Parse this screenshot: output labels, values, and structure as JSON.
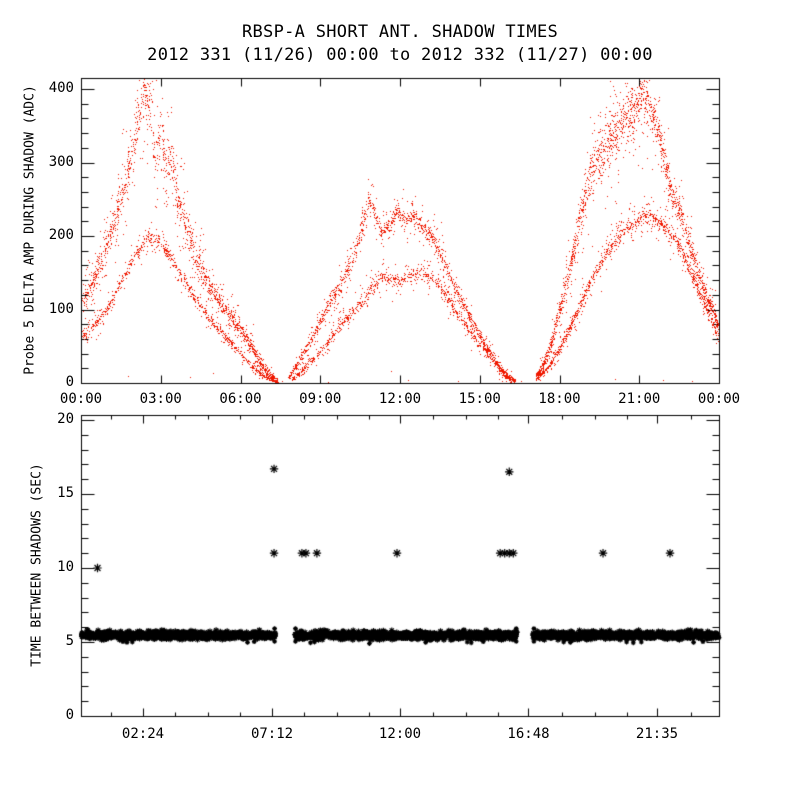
{
  "header": {
    "title": "RBSP-A SHORT ANT. SHADOW TIMES",
    "subtitle": "2012 331 (11/26) 00:00 to 2012 332 (11/27) 00:00"
  },
  "chart_data": [
    {
      "id": "probe5-delta-amp",
      "type": "scatter",
      "title": "RBSP-A SHORT ANT. SHADOW TIMES",
      "subtitle": "2012 331 (11/26) 00:00 to 2012 332 (11/27) 00:00",
      "xlabel": "",
      "ylabel": "Probe 5 DELTA AMP DURING SHADOW (ADC)",
      "xlim_hours": [
        0,
        24
      ],
      "ylim": [
        0,
        415
      ],
      "grid": false,
      "marker": "dot",
      "color": "#f01800",
      "x_ticks": {
        "hours": [
          0,
          3,
          6,
          9,
          12,
          15,
          18,
          21,
          24
        ],
        "labels": [
          "00:00",
          "03:00",
          "06:00",
          "09:00",
          "12:00",
          "15:00",
          "18:00",
          "21:00",
          "00:00"
        ]
      },
      "y_ticks": {
        "values": [
          0,
          100,
          200,
          300,
          400
        ],
        "labels": [
          "0",
          "100",
          "200",
          "300",
          "400"
        ],
        "minor_step": 20
      },
      "series": [
        {
          "name": "hump1-upper",
          "h": [
            0,
            0.4,
            0.8,
            1.2,
            1.6,
            2.0,
            2.2,
            2.4,
            2.6,
            2.8,
            3.0,
            3.2,
            3.4,
            3.6,
            4.0,
            4.4,
            4.8,
            5.2,
            5.6,
            6.0,
            6.4,
            6.8,
            7.1,
            7.4
          ],
          "v": [
            105,
            135,
            170,
            215,
            265,
            330,
            370,
            400,
            370,
            300,
            340,
            300,
            310,
            255,
            205,
            165,
            135,
            112,
            92,
            72,
            50,
            25,
            10,
            3
          ],
          "spread": [
            18,
            20,
            24,
            28,
            34,
            40,
            40,
            38,
            45,
            50,
            45,
            45,
            40,
            38,
            30,
            26,
            22,
            18,
            15,
            13,
            11,
            8,
            5,
            3
          ],
          "count": 1500
        },
        {
          "name": "hump1-lower",
          "h": [
            0,
            0.5,
            1,
            1.5,
            2,
            2.5,
            3,
            3.5,
            4,
            4.5,
            5,
            5.5,
            6,
            6.5,
            7,
            7.4
          ],
          "v": [
            60,
            80,
            103,
            138,
            172,
            200,
            190,
            163,
            132,
            103,
            80,
            60,
            40,
            20,
            7,
            1
          ],
          "spread": [
            8,
            9,
            10,
            11,
            12,
            13,
            12,
            11,
            10,
            9,
            8,
            7,
            6,
            5,
            3,
            1
          ],
          "count": 800
        },
        {
          "name": "hump2-upper",
          "h": [
            7.8,
            8.2,
            8.6,
            9.0,
            9.4,
            9.8,
            10.2,
            10.5,
            10.8,
            11.0,
            11.3,
            11.6,
            11.9,
            12.2,
            12.5,
            12.8,
            13.1,
            13.4,
            13.8,
            14.2,
            14.6,
            15.0,
            15.4,
            15.8,
            16.1,
            16.35
          ],
          "v": [
            8,
            30,
            55,
            85,
            112,
            138,
            165,
            205,
            245,
            235,
            205,
            215,
            235,
            222,
            228,
            215,
            205,
            185,
            150,
            120,
            92,
            65,
            40,
            18,
            8,
            3
          ],
          "spread": [
            4,
            8,
            10,
            12,
            14,
            15,
            16,
            18,
            16,
            15,
            14,
            14,
            13,
            14,
            13,
            13,
            14,
            14,
            13,
            12,
            10,
            9,
            8,
            6,
            4,
            2
          ],
          "count": 1300
        },
        {
          "name": "hump2-lower",
          "h": [
            7.9,
            8.4,
            8.9,
            9.4,
            9.9,
            10.4,
            10.9,
            11.4,
            11.9,
            12.4,
            12.9,
            13.4,
            13.9,
            14.4,
            14.9,
            15.4,
            15.9,
            16.3
          ],
          "v": [
            4,
            20,
            40,
            62,
            85,
            105,
            128,
            148,
            138,
            148,
            152,
            138,
            108,
            82,
            58,
            35,
            12,
            2
          ],
          "spread": [
            2,
            5,
            7,
            9,
            10,
            11,
            12,
            12,
            12,
            12,
            12,
            12,
            11,
            10,
            9,
            8,
            5,
            2
          ],
          "count": 900
        },
        {
          "name": "hump3-upper",
          "h": [
            17.1,
            17.4,
            17.7,
            18.0,
            18.4,
            18.8,
            19.2,
            19.6,
            20.0,
            20.4,
            20.8,
            21.1,
            21.4,
            21.7,
            22.0,
            22.3,
            22.6,
            22.9,
            23.2,
            23.5,
            23.8,
            24.0
          ],
          "v": [
            10,
            25,
            55,
            100,
            160,
            230,
            290,
            320,
            340,
            355,
            370,
            395,
            375,
            340,
            290,
            250,
            225,
            185,
            150,
            120,
            95,
            75
          ],
          "spread": [
            5,
            9,
            14,
            18,
            24,
            34,
            42,
            45,
            45,
            45,
            42,
            40,
            38,
            35,
            30,
            25,
            20,
            18,
            16,
            14,
            12,
            12
          ],
          "count": 1700
        },
        {
          "name": "hump3-lower",
          "h": [
            17.1,
            17.5,
            17.9,
            18.3,
            18.8,
            19.3,
            19.8,
            20.3,
            20.8,
            21.2,
            21.6,
            22.0,
            22.4,
            22.8,
            23.2,
            23.6,
            24.0
          ],
          "v": [
            6,
            18,
            40,
            70,
            108,
            148,
            180,
            205,
            218,
            228,
            222,
            210,
            192,
            162,
            128,
            95,
            62
          ],
          "spread": [
            3,
            5,
            8,
            10,
            12,
            13,
            14,
            14,
            14,
            13,
            13,
            13,
            13,
            12,
            11,
            10,
            10
          ],
          "count": 1000
        }
      ],
      "stray_points": [
        [
          1.75,
          9
        ],
        [
          4.1,
          8
        ],
        [
          4.95,
          13
        ],
        [
          7.55,
          3
        ],
        [
          9.3,
          2
        ],
        [
          11.65,
          16
        ],
        [
          12.3,
          4
        ],
        [
          14.2,
          3
        ],
        [
          16.55,
          3
        ],
        [
          20.1,
          6
        ],
        [
          21.9,
          4
        ],
        [
          23.0,
          3
        ]
      ]
    },
    {
      "id": "time-between-shadows",
      "type": "scatter",
      "title": "",
      "xlabel": "",
      "ylabel": "TIME BETWEEN SHADOWS (SEC)",
      "xlim_hours": [
        0,
        24
      ],
      "ylim": [
        0,
        20.3
      ],
      "grid": false,
      "marker": "asterisk",
      "color": "#000000",
      "x_ticks": {
        "fractions": [
          0.0972,
          0.2994,
          0.5,
          0.7014,
          0.9028
        ],
        "labels": [
          "02:24",
          "07:12",
          "12:00",
          "16:48",
          "21:35"
        ],
        "minor_divisions": 4
      },
      "y_ticks": {
        "values": [
          0,
          5,
          10,
          15,
          20
        ],
        "labels": [
          "0",
          "5",
          "10",
          "15",
          "20"
        ],
        "minor_step": 1
      },
      "band": {
        "sec_center": 5.45,
        "sec_sigma": 0.12,
        "segments_hours": [
          [
            0.1,
            7.33
          ],
          [
            8.08,
            16.35
          ],
          [
            16.97,
            23.95
          ]
        ],
        "count": 2800
      },
      "fringe_points": [
        [
          1.65,
          5.02
        ],
        [
          1.8,
          4.97
        ],
        [
          2.0,
          5.0
        ],
        [
          6.3,
          4.98
        ],
        [
          6.55,
          5.03
        ],
        [
          8.65,
          4.95
        ],
        [
          8.8,
          5.0
        ],
        [
          10.85,
          4.9
        ],
        [
          12.95,
          4.97
        ],
        [
          14.5,
          5.0
        ],
        [
          14.65,
          4.95
        ],
        [
          15.1,
          5.02
        ],
        [
          18.1,
          5.0
        ],
        [
          18.35,
          4.97
        ],
        [
          20.45,
          5.0
        ],
        [
          20.7,
          4.95
        ],
        [
          21.0,
          5.0
        ],
        [
          22.95,
          4.97
        ],
        [
          23.3,
          5.02
        ],
        [
          23.9,
          5.3
        ]
      ],
      "gap_edge_hours": [
        7.31,
        8.09,
        16.33,
        16.99
      ],
      "outliers": [
        [
          0.7,
          10.0
        ],
        [
          7.29,
          16.7
        ],
        [
          7.29,
          11.0
        ],
        [
          8.33,
          11.0
        ],
        [
          8.48,
          11.0
        ],
        [
          8.89,
          11.0
        ],
        [
          11.88,
          11.0
        ],
        [
          15.73,
          11.0
        ],
        [
          15.9,
          11.0
        ],
        [
          16.07,
          11.0
        ],
        [
          16.22,
          11.0
        ],
        [
          16.07,
          16.5
        ],
        [
          19.57,
          11.0
        ],
        [
          22.07,
          11.0
        ]
      ]
    }
  ]
}
